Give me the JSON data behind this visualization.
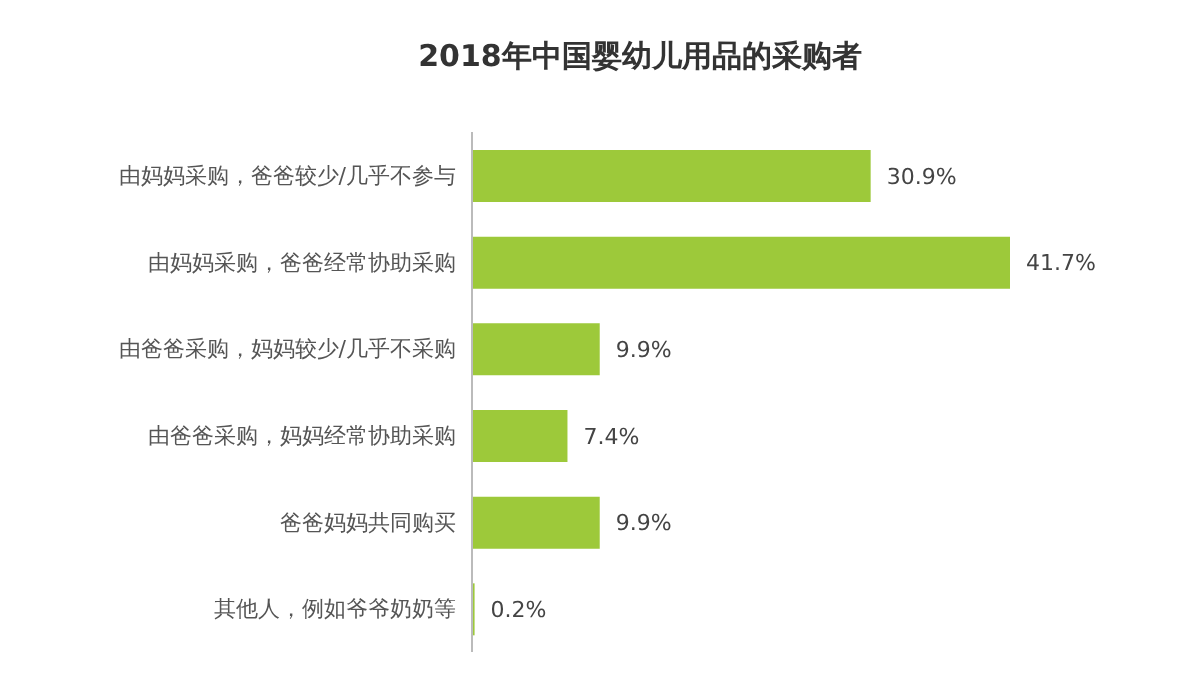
{
  "chart_data": {
    "type": "bar",
    "orientation": "horizontal",
    "title": "2018年中国婴幼儿用品的采购者",
    "categories": [
      "由妈妈采购，爸爸较少/几乎不参与",
      "由妈妈采购，爸爸经常协助采购",
      "由爸爸采购，妈妈较少/几乎不采购",
      "由爸爸采购，妈妈经常协助采购",
      "爸爸妈妈共同购买",
      "其他人，例如爷爷奶奶等"
    ],
    "values": [
      30.9,
      41.7,
      9.9,
      7.4,
      9.9,
      0.2
    ],
    "value_labels": [
      "30.9%",
      "41.7%",
      "9.9%",
      "7.4%",
      "9.9%",
      "0.2%"
    ],
    "color": "#9dc93a"
  }
}
